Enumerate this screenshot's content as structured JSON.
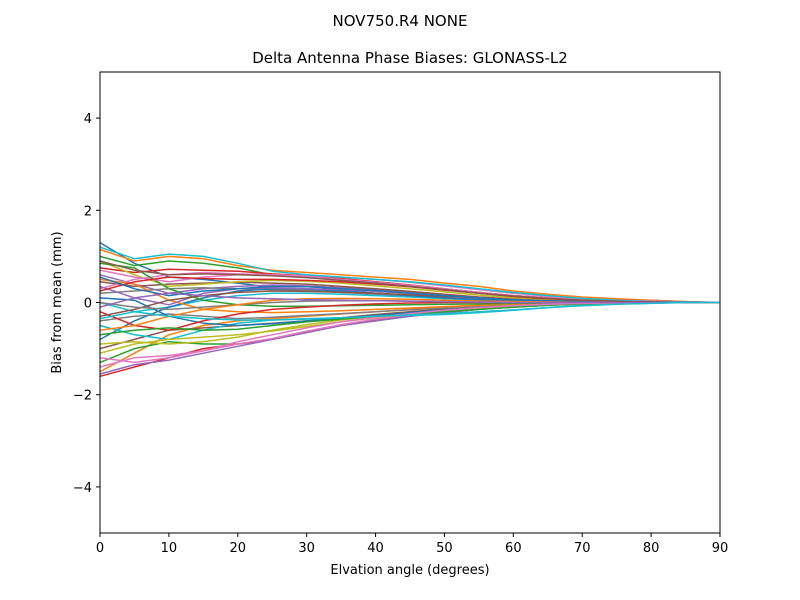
{
  "suptitle": "NOV750.R4        NONE",
  "chart_data": {
    "type": "line",
    "title": "Delta Antenna Phase Biases: GLONASS-L2",
    "xlabel": "Elvation angle (degrees)",
    "ylabel": "Bias from mean (mm)",
    "xlim": [
      0,
      90
    ],
    "ylim": [
      -5,
      5
    ],
    "xticks": [
      0,
      10,
      20,
      30,
      40,
      50,
      60,
      70,
      80,
      90
    ],
    "yticks": [
      -4,
      -2,
      0,
      2,
      4
    ],
    "ytick_labels": [
      "−4",
      "−2",
      "0",
      "2",
      "4"
    ],
    "grid": false,
    "legend": "none",
    "x": [
      0,
      5,
      10,
      15,
      20,
      25,
      30,
      35,
      40,
      45,
      50,
      55,
      60,
      65,
      70,
      75,
      80,
      85,
      90
    ],
    "palette": [
      "#1f77b4",
      "#ff7f0e",
      "#2ca02c",
      "#d62728",
      "#9467bd",
      "#8c564b",
      "#e377c2",
      "#7f7f7f",
      "#bcbd22",
      "#17becf"
    ],
    "series": [
      {
        "color": "#1f77b4",
        "values": [
          1.3,
          0.85,
          0.55,
          0.5,
          0.42,
          0.32,
          0.28,
          0.25,
          0.2,
          0.15,
          0.1,
          0.05,
          0.02,
          0.0,
          0.02,
          0.05,
          0.05,
          0.02,
          0.0
        ]
      },
      {
        "color": "#ff7f0e",
        "values": [
          1.15,
          0.9,
          1.0,
          0.95,
          0.8,
          0.7,
          0.65,
          0.6,
          0.55,
          0.5,
          0.42,
          0.35,
          0.25,
          0.18,
          0.12,
          0.08,
          0.05,
          0.02,
          0.0
        ]
      },
      {
        "color": "#2ca02c",
        "values": [
          1.0,
          0.8,
          0.9,
          0.85,
          0.75,
          0.6,
          0.55,
          0.5,
          0.45,
          0.38,
          0.3,
          0.22,
          0.15,
          0.1,
          0.06,
          0.04,
          0.02,
          0.01,
          0.0
        ]
      },
      {
        "color": "#d62728",
        "values": [
          0.75,
          0.65,
          0.72,
          0.7,
          0.68,
          0.62,
          0.58,
          0.52,
          0.45,
          0.38,
          0.3,
          0.22,
          0.15,
          0.1,
          0.07,
          0.05,
          0.03,
          0.01,
          0.0
        ]
      },
      {
        "color": "#9467bd",
        "values": [
          0.6,
          0.4,
          0.2,
          0.3,
          0.35,
          0.38,
          0.36,
          0.32,
          0.28,
          0.22,
          0.16,
          0.1,
          0.05,
          0.03,
          0.02,
          0.02,
          0.01,
          0.0,
          0.0
        ]
      },
      {
        "color": "#8c564b",
        "values": [
          0.45,
          0.35,
          0.4,
          0.42,
          0.44,
          0.42,
          0.4,
          0.35,
          0.3,
          0.24,
          0.18,
          0.12,
          0.08,
          0.05,
          0.03,
          0.02,
          0.01,
          0.0,
          0.0
        ]
      },
      {
        "color": "#e377c2",
        "values": [
          0.3,
          0.5,
          0.6,
          0.65,
          0.62,
          0.6,
          0.58,
          0.55,
          0.5,
          0.44,
          0.36,
          0.28,
          0.2,
          0.13,
          0.08,
          0.05,
          0.03,
          0.01,
          0.0
        ]
      },
      {
        "color": "#7f7f7f",
        "values": [
          0.2,
          0.25,
          0.3,
          0.32,
          0.3,
          0.28,
          0.26,
          0.22,
          0.18,
          0.14,
          0.1,
          0.07,
          0.04,
          0.02,
          0.01,
          0.0,
          0.0,
          0.0,
          0.0
        ]
      },
      {
        "color": "#bcbd22",
        "values": [
          0.9,
          0.6,
          0.35,
          0.4,
          0.45,
          0.48,
          0.46,
          0.42,
          0.36,
          0.3,
          0.23,
          0.16,
          0.1,
          0.06,
          0.04,
          0.02,
          0.01,
          0.0,
          0.0
        ]
      },
      {
        "color": "#17becf",
        "values": [
          0.0,
          -0.2,
          -0.1,
          0.05,
          0.15,
          0.2,
          0.2,
          0.18,
          0.15,
          0.12,
          0.08,
          0.05,
          0.03,
          0.02,
          0.01,
          0.0,
          0.0,
          0.0,
          0.0
        ]
      },
      {
        "color": "#1f77b4",
        "values": [
          -0.8,
          -0.4,
          -0.1,
          0.1,
          0.25,
          0.3,
          0.3,
          0.26,
          0.2,
          0.15,
          0.1,
          0.06,
          0.03,
          0.02,
          0.01,
          0.0,
          0.0,
          0.0,
          0.0
        ]
      },
      {
        "color": "#ff7f0e",
        "values": [
          -1.5,
          -1.1,
          -0.7,
          -0.5,
          -0.4,
          -0.35,
          -0.3,
          -0.25,
          -0.2,
          -0.15,
          -0.1,
          -0.06,
          -0.03,
          -0.02,
          -0.01,
          0.0,
          0.0,
          0.0,
          0.0
        ]
      },
      {
        "color": "#2ca02c",
        "values": [
          -1.3,
          -1.0,
          -0.85,
          -0.9,
          -0.9,
          -0.8,
          -0.65,
          -0.5,
          -0.4,
          -0.3,
          -0.22,
          -0.15,
          -0.1,
          -0.06,
          -0.03,
          -0.02,
          -0.01,
          0.0,
          0.0
        ]
      },
      {
        "color": "#d62728",
        "values": [
          -1.6,
          -1.4,
          -1.2,
          -1.0,
          -0.9,
          -0.8,
          -0.65,
          -0.5,
          -0.38,
          -0.28,
          -0.2,
          -0.13,
          -0.08,
          -0.05,
          -0.02,
          -0.01,
          0.0,
          0.0,
          0.0
        ]
      },
      {
        "color": "#9467bd",
        "values": [
          -1.55,
          -1.35,
          -1.25,
          -1.1,
          -0.95,
          -0.8,
          -0.65,
          -0.5,
          -0.4,
          -0.3,
          -0.22,
          -0.15,
          -0.1,
          -0.06,
          -0.03,
          -0.02,
          -0.01,
          0.0,
          0.0
        ]
      },
      {
        "color": "#8c564b",
        "values": [
          -1.0,
          -0.8,
          -0.6,
          -0.55,
          -0.5,
          -0.45,
          -0.4,
          -0.33,
          -0.26,
          -0.2,
          -0.14,
          -0.1,
          -0.06,
          -0.04,
          -0.02,
          -0.01,
          0.0,
          0.0,
          0.0
        ]
      },
      {
        "color": "#e377c2",
        "values": [
          -1.4,
          -1.2,
          -1.15,
          -1.05,
          -0.9,
          -0.78,
          -0.62,
          -0.48,
          -0.36,
          -0.27,
          -0.19,
          -0.13,
          -0.08,
          -0.05,
          -0.03,
          -0.01,
          0.0,
          0.0,
          0.0
        ]
      },
      {
        "color": "#7f7f7f",
        "values": [
          -0.4,
          -0.3,
          -0.25,
          -0.3,
          -0.35,
          -0.32,
          -0.28,
          -0.24,
          -0.2,
          -0.16,
          -0.12,
          -0.09,
          -0.06,
          -0.04,
          -0.02,
          -0.01,
          0.0,
          0.0,
          0.0
        ]
      },
      {
        "color": "#bcbd22",
        "values": [
          -0.9,
          -0.85,
          -0.9,
          -0.85,
          -0.75,
          -0.6,
          -0.48,
          -0.38,
          -0.3,
          -0.23,
          -0.17,
          -0.12,
          -0.08,
          -0.05,
          -0.03,
          -0.01,
          0.0,
          0.0,
          0.0
        ]
      },
      {
        "color": "#17becf",
        "values": [
          -0.5,
          -0.7,
          -0.8,
          -0.6,
          -0.45,
          -0.38,
          -0.35,
          -0.33,
          -0.3,
          -0.28,
          -0.26,
          -0.22,
          -0.17,
          -0.11,
          -0.06,
          -0.03,
          -0.01,
          0.0,
          0.0
        ]
      },
      {
        "color": "#1f77b4",
        "values": [
          0.1,
          0.05,
          -0.3,
          -0.45,
          -0.5,
          -0.46,
          -0.4,
          -0.34,
          -0.28,
          -0.22,
          -0.16,
          -0.11,
          -0.07,
          -0.04,
          -0.02,
          -0.01,
          0.0,
          0.0,
          0.0
        ]
      },
      {
        "color": "#ff7f0e",
        "values": [
          0.5,
          0.4,
          0.05,
          -0.15,
          -0.2,
          -0.22,
          -0.2,
          -0.18,
          -0.15,
          -0.12,
          -0.09,
          -0.06,
          -0.04,
          -0.02,
          -0.01,
          0.0,
          0.0,
          0.0,
          0.0
        ]
      },
      {
        "color": "#2ca02c",
        "values": [
          0.85,
          0.75,
          0.3,
          0.05,
          -0.05,
          -0.08,
          -0.08,
          -0.07,
          -0.06,
          -0.05,
          -0.04,
          -0.03,
          -0.02,
          -0.01,
          0.0,
          0.0,
          0.0,
          0.0,
          0.0
        ]
      },
      {
        "color": "#d62728",
        "values": [
          -0.2,
          -0.5,
          -0.6,
          -0.4,
          -0.25,
          -0.15,
          -0.1,
          -0.06,
          -0.03,
          -0.01,
          0.0,
          0.0,
          0.0,
          0.0,
          0.0,
          0.0,
          0.0,
          0.0,
          0.0
        ]
      },
      {
        "color": "#9467bd",
        "values": [
          0.35,
          0.1,
          -0.05,
          0.2,
          0.3,
          0.32,
          0.3,
          0.28,
          0.24,
          0.2,
          0.15,
          0.1,
          0.06,
          0.03,
          0.02,
          0.01,
          0.0,
          0.0,
          0.0
        ]
      },
      {
        "color": "#8c564b",
        "values": [
          -0.3,
          -0.15,
          0.05,
          0.15,
          0.22,
          0.25,
          0.24,
          0.22,
          0.2,
          0.17,
          0.13,
          0.1,
          0.07,
          0.04,
          0.02,
          0.01,
          0.0,
          0.0,
          0.0
        ]
      },
      {
        "color": "#e377c2",
        "values": [
          0.7,
          0.55,
          0.45,
          0.55,
          0.6,
          0.6,
          0.56,
          0.5,
          0.44,
          0.37,
          0.3,
          0.22,
          0.15,
          0.1,
          0.06,
          0.03,
          0.01,
          0.0,
          0.0
        ]
      },
      {
        "color": "#7f7f7f",
        "values": [
          0.0,
          -0.1,
          -0.15,
          -0.1,
          -0.05,
          0.0,
          0.03,
          0.04,
          0.04,
          0.03,
          0.02,
          0.01,
          0.0,
          0.0,
          0.0,
          0.0,
          0.0,
          0.0,
          0.0
        ]
      },
      {
        "color": "#bcbd22",
        "values": [
          -1.1,
          -0.9,
          -0.8,
          -0.75,
          -0.7,
          -0.62,
          -0.52,
          -0.42,
          -0.33,
          -0.25,
          -0.18,
          -0.12,
          -0.08,
          -0.05,
          -0.03,
          -0.01,
          0.0,
          0.0,
          0.0
        ]
      },
      {
        "color": "#17becf",
        "values": [
          1.2,
          0.95,
          1.05,
          1.0,
          0.85,
          0.68,
          0.6,
          0.55,
          0.5,
          0.45,
          0.38,
          0.3,
          0.22,
          0.15,
          0.09,
          0.05,
          0.02,
          0.01,
          0.0
        ]
      },
      {
        "color": "#2ca02c",
        "values": [
          -0.7,
          -0.6,
          -0.55,
          -0.6,
          -0.58,
          -0.5,
          -0.42,
          -0.36,
          -0.3,
          -0.25,
          -0.2,
          -0.15,
          -0.1,
          -0.06,
          -0.03,
          -0.01,
          0.0,
          0.0,
          0.0
        ]
      },
      {
        "color": "#d62728",
        "values": [
          0.25,
          0.45,
          0.55,
          0.52,
          0.5,
          0.5,
          0.48,
          0.45,
          0.4,
          0.34,
          0.27,
          0.2,
          0.13,
          0.08,
          0.05,
          0.02,
          0.01,
          0.0,
          0.0
        ]
      },
      {
        "color": "#1f77b4",
        "values": [
          0.55,
          0.3,
          0.15,
          0.25,
          0.3,
          0.35,
          0.34,
          0.3,
          0.26,
          0.2,
          0.15,
          0.1,
          0.06,
          0.04,
          0.02,
          0.01,
          0.0,
          0.0,
          0.0
        ]
      },
      {
        "color": "#ff7f0e",
        "values": [
          -0.6,
          -0.5,
          -0.3,
          -0.15,
          -0.05,
          0.05,
          0.08,
          0.09,
          0.08,
          0.07,
          0.05,
          0.03,
          0.02,
          0.01,
          0.0,
          0.0,
          0.0,
          0.0,
          0.0
        ]
      },
      {
        "color": "#e377c2",
        "values": [
          -1.2,
          -1.3,
          -1.2,
          -1.05,
          -0.85,
          -0.7,
          -0.55,
          -0.42,
          -0.32,
          -0.24,
          -0.17,
          -0.11,
          -0.07,
          -0.04,
          -0.02,
          -0.01,
          0.0,
          0.0,
          0.0
        ]
      },
      {
        "color": "#8c564b",
        "values": [
          0.9,
          0.7,
          0.6,
          0.62,
          0.6,
          0.58,
          0.54,
          0.48,
          0.42,
          0.35,
          0.28,
          0.2,
          0.14,
          0.09,
          0.05,
          0.03,
          0.01,
          0.0,
          0.0
        ]
      },
      {
        "color": "#9467bd",
        "values": [
          -0.1,
          0.1,
          0.2,
          0.15,
          0.1,
          0.08,
          0.06,
          0.05,
          0.04,
          0.03,
          0.02,
          0.01,
          0.0,
          0.0,
          0.0,
          0.0,
          0.0,
          0.0,
          0.0
        ]
      },
      {
        "color": "#17becf",
        "values": [
          -0.35,
          -0.2,
          -0.3,
          -0.35,
          -0.38,
          -0.38,
          -0.36,
          -0.33,
          -0.3,
          -0.27,
          -0.24,
          -0.2,
          -0.16,
          -0.11,
          -0.07,
          -0.04,
          -0.02,
          0.0,
          0.0
        ]
      }
    ]
  }
}
